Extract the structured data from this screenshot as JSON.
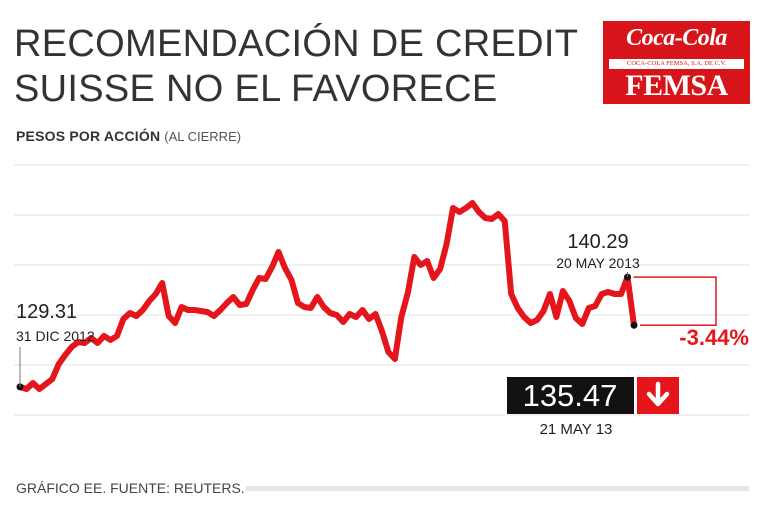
{
  "title_line1": "RECOMENDACIÓN DE CREDIT",
  "title_line2": "SUISSE NO EL FAVORECE",
  "subtitle_bold": "PESOS POR ACCIÓN",
  "subtitle_unit": "(AL CIERRE)",
  "logo": {
    "script": "Coca-Cola",
    "band": "COCA-COLA FEMSA, S.A. DE C.V.",
    "femsa": "FEMSA",
    "color": "#d7141a"
  },
  "footer": "GRÁFICO EE. FUENTE: REUTERS.",
  "chart_data": {
    "type": "line",
    "title": "RECOMENDACIÓN DE CREDIT SUISSE NO EL FAVORECE",
    "ylabel": "PESOS POR ACCIÓN (AL CIERRE)",
    "ylim": [
      122,
      152
    ],
    "line_color": "#e4161b",
    "series": [
      {
        "name": "Coca-Cola FEMSA",
        "values": [
          129.31,
          129.1,
          129.7,
          129.1,
          129.6,
          130.1,
          131.6,
          132.5,
          133.3,
          133.8,
          133.7,
          134.2,
          133.7,
          134.4,
          134.0,
          134.4,
          136.1,
          136.7,
          136.4,
          137.0,
          137.9,
          138.6,
          139.7,
          136.4,
          135.7,
          137.3,
          137.0,
          137.0,
          136.9,
          136.8,
          136.4,
          137.0,
          137.7,
          138.3,
          137.5,
          137.6,
          139.0,
          140.2,
          140.1,
          141.3,
          142.8,
          141.2,
          140.0,
          137.7,
          137.3,
          137.2,
          138.3,
          137.3,
          136.7,
          136.5,
          135.8,
          136.6,
          136.3,
          137.0,
          136.1,
          136.6,
          134.9,
          132.8,
          132.1,
          136.3,
          138.7,
          142.3,
          141.5,
          141.9,
          140.2,
          141.1,
          143.6,
          147.2,
          146.8,
          147.2,
          147.7,
          146.8,
          146.2,
          146.1,
          146.6,
          145.9,
          138.6,
          137.2,
          136.3,
          135.7,
          136.0,
          136.9,
          138.6,
          136.3,
          138.9,
          137.9,
          136.2,
          135.6,
          137.2,
          137.4,
          138.6,
          138.8,
          138.6,
          138.6,
          140.29,
          135.47
        ]
      }
    ],
    "annotations": {
      "start_value": "129.31",
      "start_date": "31 DIC 2012",
      "prev_value": "140.29",
      "prev_date": "20 MAY 2013",
      "last_value": "135.47",
      "last_date": "21 MAY 13",
      "change": "-3.44%"
    }
  }
}
